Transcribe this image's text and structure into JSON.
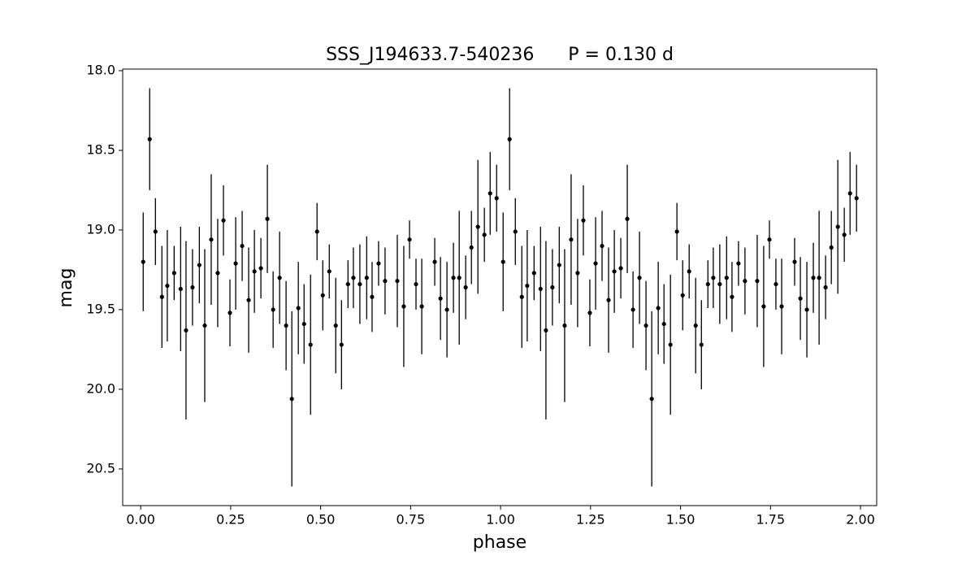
{
  "chart_data": {
    "type": "errorbar",
    "title": "SSS_J194633.7-540236      P = 0.130 d",
    "x_label": "phase",
    "y_label": "mag",
    "xlim": [
      -0.05,
      2.045
    ],
    "ylim": [
      20.73,
      17.99
    ],
    "xticks": [
      {
        "value": 0,
        "label": "0.00"
      },
      {
        "value": 0.25,
        "label": "0.25"
      },
      {
        "value": 0.5,
        "label": "0.50"
      },
      {
        "value": 0.75,
        "label": "0.75"
      },
      {
        "value": 1,
        "label": "1.00"
      },
      {
        "value": 1.25,
        "label": "1.25"
      },
      {
        "value": 1.5,
        "label": "1.50"
      },
      {
        "value": 1.75,
        "label": "1.75"
      },
      {
        "value": 2,
        "label": "2.00"
      }
    ],
    "yticks": [
      {
        "value": 18,
        "label": "18.0"
      },
      {
        "value": 18.5,
        "label": "18.5"
      },
      {
        "value": 19,
        "label": "19.0"
      },
      {
        "value": 19.5,
        "label": "19.5"
      },
      {
        "value": 20,
        "label": "20.0"
      },
      {
        "value": 20.5,
        "label": "20.5"
      }
    ],
    "x": [
      0.007,
      0.025,
      0.041,
      0.059,
      0.074,
      0.093,
      0.111,
      0.126,
      0.144,
      0.163,
      0.178,
      0.196,
      0.214,
      0.23,
      0.248,
      0.264,
      0.282,
      0.3,
      0.316,
      0.334,
      0.352,
      0.368,
      0.386,
      0.404,
      0.42,
      0.438,
      0.454,
      0.472,
      0.49,
      0.506,
      0.524,
      0.542,
      0.558,
      0.576,
      0.591,
      0.609,
      0.628,
      0.643,
      0.661,
      0.679,
      0.713,
      0.731,
      0.747,
      0.765,
      0.781,
      0.817,
      0.833,
      0.851,
      0.869,
      0.885,
      0.903,
      0.919,
      0.937,
      0.955,
      0.971,
      0.989,
      1.007,
      1.025,
      1.041,
      1.059,
      1.074,
      1.093,
      1.111,
      1.126,
      1.144,
      1.163,
      1.178,
      1.196,
      1.214,
      1.23,
      1.248,
      1.264,
      1.282,
      1.3,
      1.316,
      1.334,
      1.352,
      1.368,
      1.386,
      1.404,
      1.42,
      1.438,
      1.454,
      1.472,
      1.49,
      1.506,
      1.524,
      1.542,
      1.558,
      1.576,
      1.591,
      1.609,
      1.628,
      1.643,
      1.661,
      1.679,
      1.713,
      1.731,
      1.747,
      1.765,
      1.781,
      1.817,
      1.833,
      1.851,
      1.869,
      1.885,
      1.903,
      1.919,
      1.937,
      1.955,
      1.971,
      1.989
    ],
    "series": [
      {
        "color": "#000000",
        "values": [
          19.2,
          18.43,
          19.01,
          19.42,
          19.35,
          19.27,
          19.37,
          19.63,
          19.36,
          19.22,
          19.6,
          19.06,
          19.27,
          18.94,
          19.52,
          19.21,
          19.1,
          19.44,
          19.26,
          19.24,
          18.93,
          19.5,
          19.3,
          19.6,
          20.06,
          19.49,
          19.59,
          19.72,
          19.01,
          19.41,
          19.26,
          19.6,
          19.72,
          19.34,
          19.3,
          19.34,
          19.3,
          19.42,
          19.21,
          19.32,
          19.32,
          19.48,
          19.06,
          19.34,
          19.48,
          19.2,
          19.43,
          19.5,
          19.3,
          19.3,
          19.36,
          19.11,
          18.98,
          19.03,
          18.77,
          18.8,
          19.2,
          18.43,
          19.01,
          19.42,
          19.35,
          19.27,
          19.37,
          19.63,
          19.36,
          19.22,
          19.6,
          19.06,
          19.27,
          18.94,
          19.52,
          19.21,
          19.1,
          19.44,
          19.26,
          19.24,
          18.93,
          19.5,
          19.3,
          19.6,
          20.06,
          19.49,
          19.59,
          19.72,
          19.01,
          19.41,
          19.26,
          19.6,
          19.72,
          19.34,
          19.3,
          19.34,
          19.3,
          19.42,
          19.21,
          19.32,
          19.32,
          19.48,
          19.06,
          19.34,
          19.48,
          19.2,
          19.43,
          19.5,
          19.3,
          19.3,
          19.36,
          19.11,
          18.98,
          19.03,
          18.77,
          18.8
        ],
        "errors": [
          0.31,
          0.32,
          0.21,
          0.32,
          0.35,
          0.17,
          0.39,
          0.56,
          0.24,
          0.24,
          0.48,
          0.41,
          0.34,
          0.22,
          0.21,
          0.29,
          0.22,
          0.33,
          0.26,
          0.19,
          0.34,
          0.24,
          0.29,
          0.28,
          0.55,
          0.29,
          0.25,
          0.44,
          0.18,
          0.22,
          0.17,
          0.3,
          0.28,
          0.15,
          0.19,
          0.25,
          0.26,
          0.22,
          0.14,
          0.21,
          0.29,
          0.38,
          0.12,
          0.16,
          0.3,
          0.15,
          0.26,
          0.3,
          0.22,
          0.42,
          0.2,
          0.23,
          0.42,
          0.17,
          0.26,
          0.21,
          0.31,
          0.32,
          0.21,
          0.32,
          0.35,
          0.17,
          0.39,
          0.56,
          0.24,
          0.24,
          0.48,
          0.41,
          0.34,
          0.22,
          0.21,
          0.29,
          0.22,
          0.33,
          0.26,
          0.19,
          0.34,
          0.24,
          0.29,
          0.28,
          0.55,
          0.29,
          0.25,
          0.44,
          0.18,
          0.22,
          0.17,
          0.3,
          0.28,
          0.15,
          0.19,
          0.25,
          0.26,
          0.22,
          0.14,
          0.21,
          0.29,
          0.38,
          0.12,
          0.16,
          0.3,
          0.15,
          0.26,
          0.3,
          0.22,
          0.42,
          0.2,
          0.23,
          0.42,
          0.17,
          0.26,
          0.21
        ]
      }
    ]
  }
}
